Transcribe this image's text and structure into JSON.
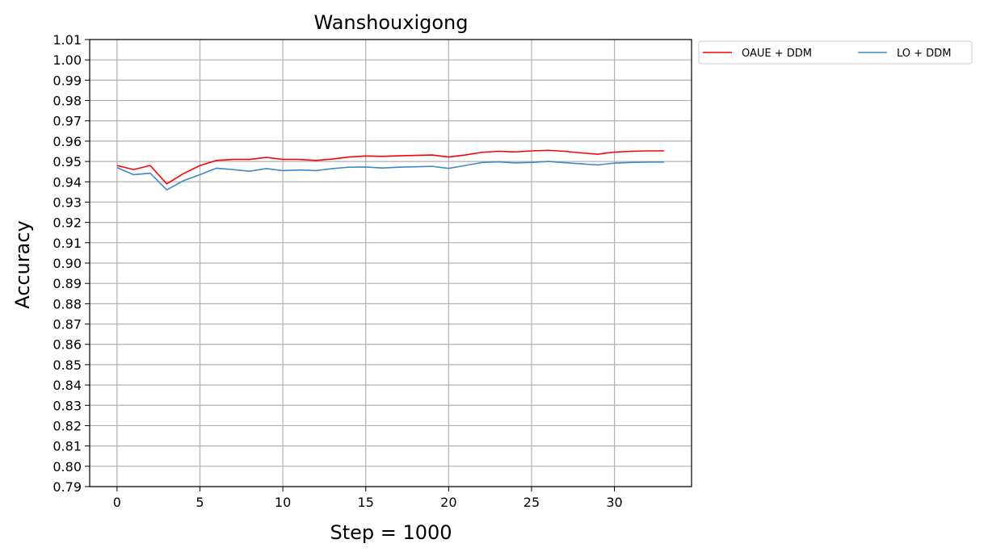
{
  "chart_data": {
    "type": "line",
    "title": "Wanshouxigong",
    "xlabel": "Step = 1000",
    "ylabel": "Accuracy",
    "xlim": [
      -1.65,
      34.65
    ],
    "ylim": [
      0.79,
      1.01
    ],
    "x_ticks": [
      0,
      5,
      10,
      15,
      20,
      25,
      30
    ],
    "y_ticks": [
      "0.79",
      "0.80",
      "0.81",
      "0.82",
      "0.83",
      "0.84",
      "0.85",
      "0.86",
      "0.87",
      "0.88",
      "0.89",
      "0.90",
      "0.91",
      "0.92",
      "0.93",
      "0.94",
      "0.95",
      "0.96",
      "0.97",
      "0.98",
      "0.99",
      "1.00",
      "1.01"
    ],
    "grid": true,
    "legend_position": "outside-top-right",
    "x": [
      0,
      1,
      2,
      3,
      4,
      5,
      6,
      7,
      8,
      9,
      10,
      11,
      12,
      13,
      14,
      15,
      16,
      17,
      18,
      19,
      20,
      21,
      22,
      23,
      24,
      25,
      26,
      27,
      28,
      29,
      30,
      31,
      32,
      33
    ],
    "series": [
      {
        "name": "OAUE + DDM",
        "color": "#ff0000",
        "values": [
          0.948,
          0.946,
          0.948,
          0.939,
          0.944,
          0.948,
          0.9505,
          0.951,
          0.951,
          0.952,
          0.951,
          0.951,
          0.9505,
          0.9512,
          0.9522,
          0.9527,
          0.9525,
          0.9528,
          0.953,
          0.9532,
          0.9522,
          0.9532,
          0.9545,
          0.955,
          0.9547,
          0.9552,
          0.9555,
          0.955,
          0.9542,
          0.9536,
          0.9546,
          0.955,
          0.9552,
          0.9552
        ]
      },
      {
        "name": "LO + DDM",
        "color": "#3f88c5",
        "values": [
          0.947,
          0.9435,
          0.9442,
          0.936,
          0.9405,
          0.9435,
          0.9467,
          0.946,
          0.9452,
          0.9465,
          0.9455,
          0.9458,
          0.9455,
          0.9465,
          0.9472,
          0.9473,
          0.9468,
          0.9472,
          0.9474,
          0.9476,
          0.9466,
          0.948,
          0.9495,
          0.9498,
          0.9493,
          0.9495,
          0.95,
          0.9494,
          0.9488,
          0.9483,
          0.9492,
          0.9495,
          0.9497,
          0.9497
        ]
      }
    ]
  }
}
